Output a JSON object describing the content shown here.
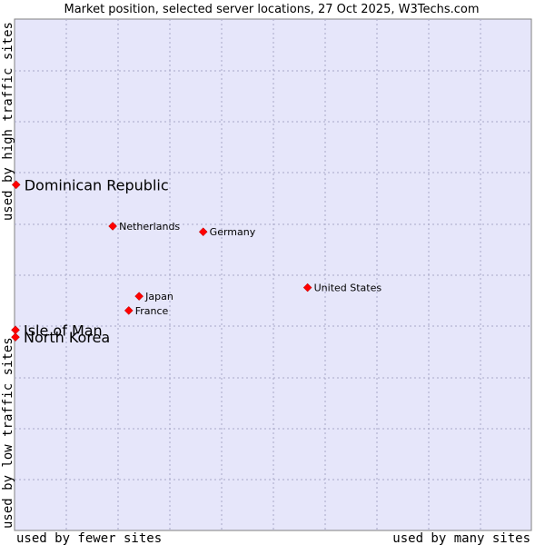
{
  "chart_data": {
    "type": "scatter",
    "title": "Market position, selected server locations, 27 Oct 2025, W3Techs.com",
    "xlabel_left": "used by fewer sites",
    "xlabel_right": "used by many sites",
    "ylabel_low": "used by low traffic sites",
    "ylabel_high": "used by high traffic sites",
    "xlim": [
      0,
      100
    ],
    "ylim": [
      0,
      100
    ],
    "grid": true,
    "point_color": "#ff0000",
    "plot_background": "#e6e6fa",
    "points": [
      {
        "name": "Dominican Republic",
        "x": 0.3,
        "y": 67.6,
        "label_size": "large"
      },
      {
        "name": "Netherlands",
        "x": 19.0,
        "y": 59.5,
        "label_size": "small"
      },
      {
        "name": "Germany",
        "x": 36.5,
        "y": 58.4,
        "label_size": "small"
      },
      {
        "name": "United States",
        "x": 56.7,
        "y": 47.5,
        "label_size": "small"
      },
      {
        "name": "Japan",
        "x": 24.1,
        "y": 45.8,
        "label_size": "small"
      },
      {
        "name": "France",
        "x": 22.1,
        "y": 43.0,
        "label_size": "small"
      },
      {
        "name": "Isle of Man",
        "x": 0.1,
        "y": 39.2,
        "label_size": "large"
      },
      {
        "name": "North Korea",
        "x": 0.1,
        "y": 37.8,
        "label_size": "large"
      }
    ]
  }
}
